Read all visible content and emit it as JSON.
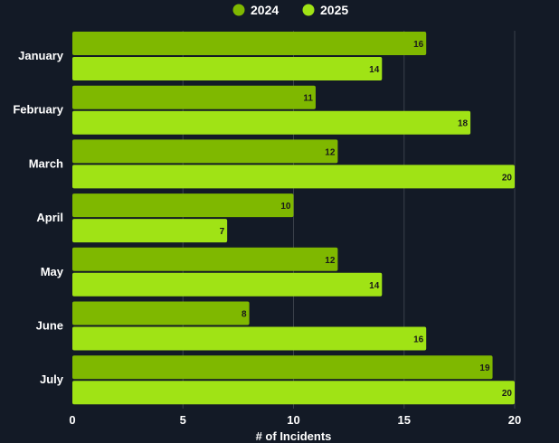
{
  "chart_data": {
    "type": "bar",
    "orientation": "horizontal",
    "categories": [
      "January",
      "February",
      "March",
      "April",
      "May",
      "June",
      "July"
    ],
    "series": [
      {
        "name": "2024",
        "values": [
          16,
          11,
          12,
          10,
          12,
          8,
          19
        ],
        "color": "#7fb800"
      },
      {
        "name": "2025",
        "values": [
          14,
          18,
          20,
          7,
          14,
          16,
          20
        ],
        "color": "#a0e315"
      }
    ],
    "xlabel": "# of Incidents",
    "ylabel": "",
    "xlim": [
      0,
      20
    ],
    "xticks": [
      0,
      5,
      10,
      15,
      20
    ],
    "grid": true,
    "legend_position": "top-center",
    "data_labels": true
  },
  "theme": {
    "background": "#131a26",
    "grid_color": "#3a404a",
    "text_color": "#ffffff",
    "label_color": "#1a1a1a"
  }
}
